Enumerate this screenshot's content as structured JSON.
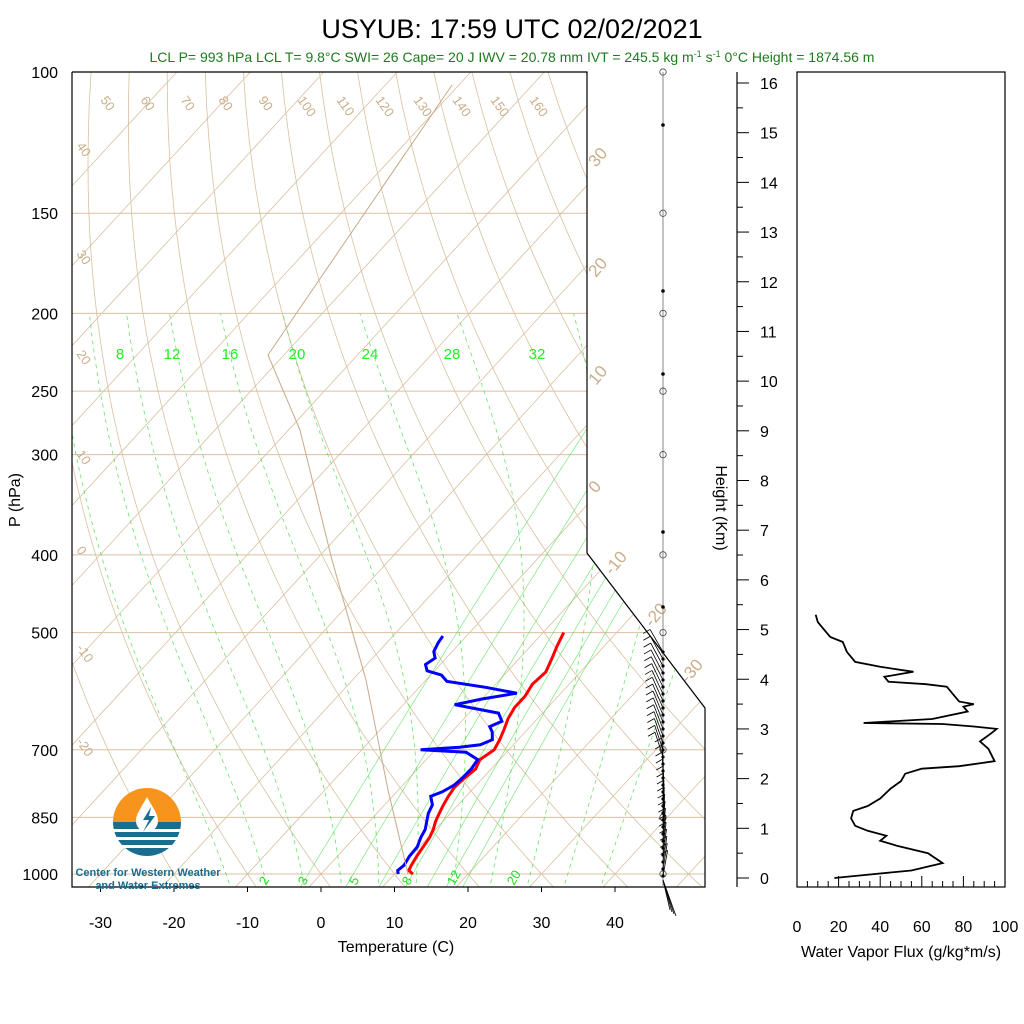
{
  "title": "USYUB: 17:59 UTC 02/02/2021",
  "stats": {
    "lcl_p": "LCL P= 993 hPa",
    "lcl_t": "LCL T= 9.8°C",
    "swi": "SWI= 26",
    "cape": "Cape= 20 J",
    "iwv": "IWV = 20.78 mm",
    "ivt": "IVT = 245.5 kg m",
    "ivt_exp1": "-1",
    "ivt_mid": " s",
    "ivt_exp2": "-1",
    "zero_height": "0°C Height = 1874.56 m"
  },
  "logo": {
    "line1": "Center for Western Weather",
    "line2": "and Water Extremes",
    "colors": {
      "orange": "#f7941d",
      "teal": "#1a6d8f"
    }
  },
  "colors": {
    "temperature": "#ff0000",
    "dewpoint": "#0000ff",
    "isobar": "#d8c0a0",
    "adiabat": "#d8c0a0",
    "mixing_ratio": "#44dd44",
    "parcel": "#c8a888",
    "flux": "#000000"
  },
  "chart_data": [
    {
      "type": "line",
      "name": "skew-t",
      "xlabel": "Temperature (C)",
      "ylabel": "P (hPa)",
      "pressure_ticks": [
        "100",
        "150",
        "200",
        "250",
        "300",
        "400",
        "500",
        "700",
        "850",
        "1000"
      ],
      "pressure_values": [
        100,
        150,
        200,
        250,
        300,
        400,
        500,
        700,
        850,
        1000
      ],
      "temp_ticks": [
        "-30",
        "-20",
        "-10",
        "0",
        "10",
        "20",
        "30",
        "40"
      ],
      "temp_values": [
        -30,
        -20,
        -10,
        0,
        10,
        20,
        30,
        40
      ],
      "dry_adiabat_labels": [
        "50",
        "60",
        "70",
        "80",
        "90",
        "100",
        "110",
        "120",
        "130",
        "140",
        "150",
        "160"
      ],
      "left_labels": [
        "40",
        "30",
        "20",
        "10",
        "0",
        "-10",
        "-20"
      ],
      "right_labels": [
        "30",
        "20",
        "10",
        "0",
        "-10",
        "-20",
        "-30"
      ],
      "mixing_labels_top": [
        "8",
        "12",
        "16",
        "20",
        "24",
        "28",
        "32"
      ],
      "mixing_labels_bottom": [
        "2",
        "3",
        "5",
        "8",
        "12",
        "20"
      ],
      "temperature": [
        {
          "p": 1000,
          "t": 12.5
        },
        {
          "p": 990,
          "t": 11.5
        },
        {
          "p": 975,
          "t": 11.2
        },
        {
          "p": 950,
          "t": 10.8
        },
        {
          "p": 925,
          "t": 10.5
        },
        {
          "p": 900,
          "t": 10.2
        },
        {
          "p": 880,
          "t": 9.7
        },
        {
          "p": 860,
          "t": 9.0
        },
        {
          "p": 840,
          "t": 8.5
        },
        {
          "p": 820,
          "t": 8.0
        },
        {
          "p": 800,
          "t": 7.6
        },
        {
          "p": 780,
          "t": 7.3
        },
        {
          "p": 760,
          "t": 7.5
        },
        {
          "p": 740,
          "t": 7.9
        },
        {
          "p": 720,
          "t": 7.3
        },
        {
          "p": 700,
          "t": 8.0
        },
        {
          "p": 680,
          "t": 7.5
        },
        {
          "p": 660,
          "t": 6.8
        },
        {
          "p": 640,
          "t": 6.0
        },
        {
          "p": 620,
          "t": 5.5
        },
        {
          "p": 600,
          "t": 5.5
        },
        {
          "p": 580,
          "t": 5.0
        },
        {
          "p": 560,
          "t": 5.3
        },
        {
          "p": 540,
          "t": 4.5
        },
        {
          "p": 520,
          "t": 3.6
        },
        {
          "p": 500,
          "t": 2.8
        }
      ],
      "dewpoint": [
        {
          "p": 1000,
          "t": 10.5
        },
        {
          "p": 990,
          "t": 10.0
        },
        {
          "p": 975,
          "t": 10.2
        },
        {
          "p": 950,
          "t": 9.8
        },
        {
          "p": 925,
          "t": 9.7
        },
        {
          "p": 900,
          "t": 9.0
        },
        {
          "p": 880,
          "t": 8.6
        },
        {
          "p": 860,
          "t": 7.8
        },
        {
          "p": 840,
          "t": 7.0
        },
        {
          "p": 820,
          "t": 6.5
        },
        {
          "p": 800,
          "t": 5.2
        },
        {
          "p": 790,
          "t": 6.2
        },
        {
          "p": 775,
          "t": 7.0
        },
        {
          "p": 760,
          "t": 7.2
        },
        {
          "p": 740,
          "t": 7.3
        },
        {
          "p": 720,
          "t": 7.0
        },
        {
          "p": 705,
          "t": 4.5
        },
        {
          "p": 700,
          "t": -2.0
        },
        {
          "p": 695,
          "t": 3.0
        },
        {
          "p": 690,
          "t": 5.5
        },
        {
          "p": 680,
          "t": 6.5
        },
        {
          "p": 665,
          "t": 5.5
        },
        {
          "p": 655,
          "t": 4.5
        },
        {
          "p": 645,
          "t": 5.5
        },
        {
          "p": 630,
          "t": 4.0
        },
        {
          "p": 615,
          "t": -3.0
        },
        {
          "p": 605,
          "t": 0.0
        },
        {
          "p": 595,
          "t": 4.0
        },
        {
          "p": 585,
          "t": -1.0
        },
        {
          "p": 575,
          "t": -7.0
        },
        {
          "p": 565,
          "t": -8.5
        },
        {
          "p": 558,
          "t": -11.0
        },
        {
          "p": 548,
          "t": -12.0
        },
        {
          "p": 538,
          "t": -11.5
        },
        {
          "p": 528,
          "t": -12.5
        },
        {
          "p": 515,
          "t": -13.0
        },
        {
          "p": 505,
          "t": -13.2
        }
      ],
      "height_ticks": [
        "0",
        "1",
        "2",
        "3",
        "4",
        "5",
        "6",
        "7",
        "8",
        "9",
        "10",
        "11",
        "12",
        "13",
        "14",
        "15",
        "16"
      ],
      "height_label": "Height (Km)"
    },
    {
      "type": "line",
      "name": "water-vapor-flux",
      "xlabel": "Water Vapor Flux (g/kg*m/s)",
      "xticks": [
        "0",
        "20",
        "40",
        "60",
        "80",
        "100"
      ],
      "xlim": [
        0,
        100
      ],
      "ylim": [
        0,
        16
      ],
      "points": [
        {
          "x": 18,
          "h": 0.0
        },
        {
          "x": 35,
          "h": 0.07
        },
        {
          "x": 55,
          "h": 0.15
        },
        {
          "x": 70,
          "h": 0.3
        },
        {
          "x": 63,
          "h": 0.5
        },
        {
          "x": 48,
          "h": 0.65
        },
        {
          "x": 40,
          "h": 0.75
        },
        {
          "x": 43,
          "h": 0.85
        },
        {
          "x": 34,
          "h": 0.95
        },
        {
          "x": 28,
          "h": 1.05
        },
        {
          "x": 26,
          "h": 1.2
        },
        {
          "x": 27,
          "h": 1.35
        },
        {
          "x": 34,
          "h": 1.45
        },
        {
          "x": 40,
          "h": 1.6
        },
        {
          "x": 45,
          "h": 1.8
        },
        {
          "x": 50,
          "h": 1.95
        },
        {
          "x": 52,
          "h": 2.1
        },
        {
          "x": 60,
          "h": 2.2
        },
        {
          "x": 78,
          "h": 2.25
        },
        {
          "x": 95,
          "h": 2.35
        },
        {
          "x": 92,
          "h": 2.6
        },
        {
          "x": 88,
          "h": 2.75
        },
        {
          "x": 93,
          "h": 2.9
        },
        {
          "x": 96,
          "h": 3.0
        },
        {
          "x": 85,
          "h": 3.05
        },
        {
          "x": 70,
          "h": 3.1
        },
        {
          "x": 32,
          "h": 3.12
        },
        {
          "x": 65,
          "h": 3.2
        },
        {
          "x": 82,
          "h": 3.35
        },
        {
          "x": 80,
          "h": 3.45
        },
        {
          "x": 85,
          "h": 3.5
        },
        {
          "x": 78,
          "h": 3.55
        },
        {
          "x": 75,
          "h": 3.7
        },
        {
          "x": 72,
          "h": 3.85
        },
        {
          "x": 62,
          "h": 3.9
        },
        {
          "x": 44,
          "h": 3.95
        },
        {
          "x": 42,
          "h": 4.05
        },
        {
          "x": 56,
          "h": 4.15
        },
        {
          "x": 40,
          "h": 4.25
        },
        {
          "x": 28,
          "h": 4.35
        },
        {
          "x": 24,
          "h": 4.55
        },
        {
          "x": 22,
          "h": 4.75
        },
        {
          "x": 16,
          "h": 4.85
        },
        {
          "x": 13,
          "h": 5.0
        },
        {
          "x": 10,
          "h": 5.15
        },
        {
          "x": 9,
          "h": 5.3
        }
      ]
    }
  ]
}
